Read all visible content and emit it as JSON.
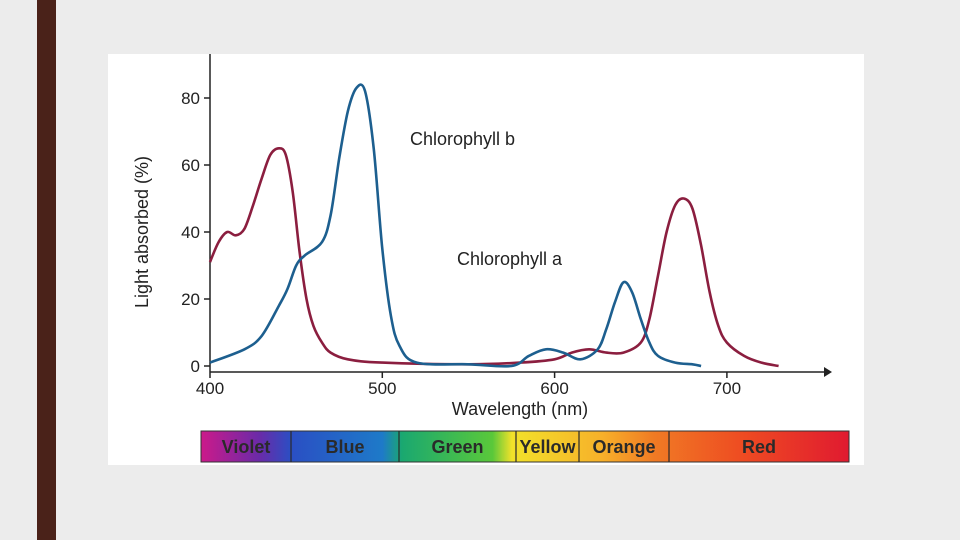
{
  "chart_data": {
    "type": "line",
    "xlabel": "Wavelength (nm)",
    "ylabel": "Light absorbed (%)",
    "xlim": [
      400,
      760
    ],
    "ylim": [
      0,
      90
    ],
    "xticks": [
      400,
      500,
      600,
      700
    ],
    "yticks": [
      0,
      20,
      40,
      60,
      80
    ],
    "series": [
      {
        "name": "Chlorophyll a",
        "color": "#8b1e3f",
        "points": [
          [
            400,
            31
          ],
          [
            405,
            37
          ],
          [
            410,
            40
          ],
          [
            415,
            39
          ],
          [
            420,
            41
          ],
          [
            425,
            48
          ],
          [
            430,
            56
          ],
          [
            435,
            63
          ],
          [
            440,
            65
          ],
          [
            444,
            63
          ],
          [
            448,
            52
          ],
          [
            452,
            34
          ],
          [
            456,
            20
          ],
          [
            460,
            12
          ],
          [
            465,
            7
          ],
          [
            470,
            4
          ],
          [
            480,
            2
          ],
          [
            500,
            1
          ],
          [
            550,
            0.5
          ],
          [
            580,
            1
          ],
          [
            600,
            2
          ],
          [
            610,
            4
          ],
          [
            620,
            5
          ],
          [
            630,
            4
          ],
          [
            640,
            4
          ],
          [
            650,
            7
          ],
          [
            655,
            14
          ],
          [
            660,
            27
          ],
          [
            665,
            40
          ],
          [
            670,
            48
          ],
          [
            675,
            50
          ],
          [
            680,
            47
          ],
          [
            685,
            36
          ],
          [
            690,
            22
          ],
          [
            695,
            12
          ],
          [
            700,
            7
          ],
          [
            710,
            3
          ],
          [
            720,
            1
          ],
          [
            730,
            0
          ]
        ]
      },
      {
        "name": "Chlorophyll b",
        "color": "#1d5f8f",
        "points": [
          [
            400,
            1
          ],
          [
            420,
            5
          ],
          [
            430,
            9
          ],
          [
            440,
            18
          ],
          [
            445,
            23
          ],
          [
            450,
            30
          ],
          [
            455,
            33
          ],
          [
            465,
            37
          ],
          [
            470,
            45
          ],
          [
            475,
            62
          ],
          [
            480,
            76
          ],
          [
            485,
            83
          ],
          [
            490,
            82
          ],
          [
            495,
            65
          ],
          [
            500,
            35
          ],
          [
            505,
            15
          ],
          [
            510,
            6
          ],
          [
            520,
            1
          ],
          [
            550,
            0.5
          ],
          [
            575,
            0
          ],
          [
            585,
            3
          ],
          [
            595,
            5
          ],
          [
            605,
            4
          ],
          [
            615,
            2
          ],
          [
            625,
            5
          ],
          [
            630,
            11
          ],
          [
            635,
            19
          ],
          [
            640,
            25
          ],
          [
            645,
            22
          ],
          [
            650,
            14
          ],
          [
            655,
            7
          ],
          [
            660,
            3
          ],
          [
            670,
            1
          ],
          [
            680,
            0.5
          ],
          [
            685,
            0
          ]
        ]
      }
    ],
    "annotations": [
      "Chlorophyll b",
      "Chlorophyll a"
    ],
    "spectrum_bands": [
      {
        "label": "Violet",
        "start": 400,
        "end": 450
      },
      {
        "label": "Blue",
        "start": 450,
        "end": 510
      },
      {
        "label": "Green",
        "start": 510,
        "end": 575
      },
      {
        "label": "Yellow",
        "start": 575,
        "end": 610
      },
      {
        "label": "Orange",
        "start": 610,
        "end": 660
      },
      {
        "label": "Red",
        "start": 660,
        "end": 760
      }
    ],
    "grid": false
  }
}
